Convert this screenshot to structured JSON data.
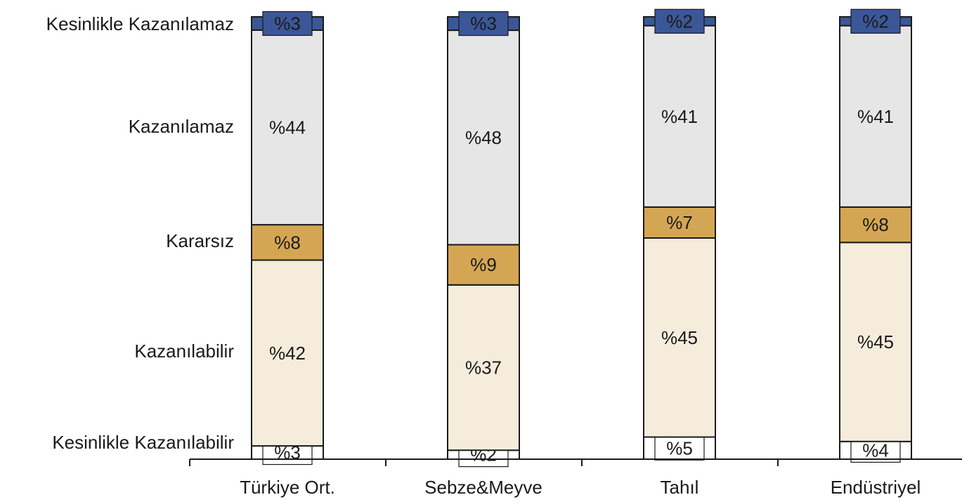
{
  "chart_data": {
    "type": "bar",
    "stacked": true,
    "percent_stacked": true,
    "categories": [
      "Türkiye Ort.",
      "Sebze&Meyve",
      "Tahıl",
      "Endüstriyel"
    ],
    "series": [
      {
        "name": "Kesinlikle Kazanılamaz",
        "color": "#ffffff",
        "values": [
          3,
          2,
          5,
          4
        ],
        "labels": [
          "%3",
          "%2",
          "%5",
          "%4"
        ]
      },
      {
        "name": "Kazanılamaz",
        "color": "#f5ecdc",
        "values": [
          42,
          37,
          45,
          45
        ],
        "labels": [
          "%42",
          "%37",
          "%45",
          "%45"
        ]
      },
      {
        "name": "Kararsız",
        "color": "#d4a654",
        "values": [
          8,
          9,
          7,
          8
        ],
        "labels": [
          "%8",
          "%9",
          "%7",
          "%8"
        ]
      },
      {
        "name": "Kazanılabilir",
        "color": "#e6e6e6",
        "values": [
          44,
          48,
          41,
          41
        ],
        "labels": [
          "%44",
          "%48",
          "%41",
          "%41"
        ]
      },
      {
        "name": "Kesinlikle Kazanılabilir",
        "color": "#3b5797",
        "values": [
          3,
          3,
          2,
          2
        ],
        "labels": [
          "%3",
          "%3",
          "%2",
          "%2"
        ]
      }
    ],
    "ylim": [
      0,
      100
    ],
    "grid": false,
    "legend": "left"
  }
}
